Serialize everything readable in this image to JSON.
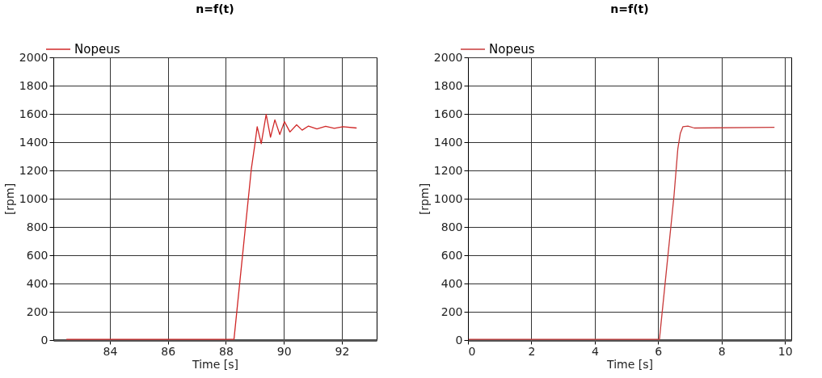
{
  "chart_data": [
    {
      "type": "line",
      "title": "n=f(t)",
      "xlabel": "Time [s]",
      "ylabel": "[rpm]",
      "xlim": [
        82.05,
        93.2
      ],
      "xticks": [
        84,
        86,
        88,
        90,
        92
      ],
      "ylim": [
        0,
        2000
      ],
      "yticks": [
        0,
        200,
        400,
        600,
        800,
        1000,
        1200,
        1400,
        1600,
        1800,
        2000
      ],
      "grid": true,
      "legend": "top left",
      "series": [
        {
          "name": "Nopeus",
          "color": "#d02828",
          "x": [
            82.5,
            88.28,
            88.88,
            89.01,
            89.08,
            89.22,
            89.39,
            89.54,
            89.69,
            89.86,
            90.02,
            90.21,
            90.44,
            90.63,
            90.85,
            91.14,
            91.44,
            91.74,
            92.04,
            92.51
          ],
          "values": [
            5,
            5,
            1214,
            1398,
            1509,
            1389,
            1597,
            1435,
            1558,
            1454,
            1545,
            1472,
            1523,
            1485,
            1514,
            1494,
            1512,
            1498,
            1509,
            1500
          ]
        }
      ]
    },
    {
      "type": "line",
      "title": "n=f(t)",
      "xlabel": "Time [s]",
      "ylabel": "[rpm]",
      "xlim": [
        0,
        10.2
      ],
      "xticks": [
        0,
        2,
        4,
        6,
        8,
        10
      ],
      "ylim": [
        0,
        2000
      ],
      "yticks": [
        0,
        200,
        400,
        600,
        800,
        1000,
        1200,
        1400,
        1600,
        1800,
        2000
      ],
      "grid": true,
      "legend": "top left",
      "series": [
        {
          "name": "Nopeus",
          "color": "#c83a3a",
          "x": [
            0.02,
            6.04,
            6.5,
            6.62,
            6.7,
            6.78,
            6.94,
            7.14,
            9.67
          ],
          "values": [
            5,
            5,
            1021,
            1352,
            1463,
            1509,
            1514,
            1500,
            1505
          ]
        }
      ]
    }
  ]
}
